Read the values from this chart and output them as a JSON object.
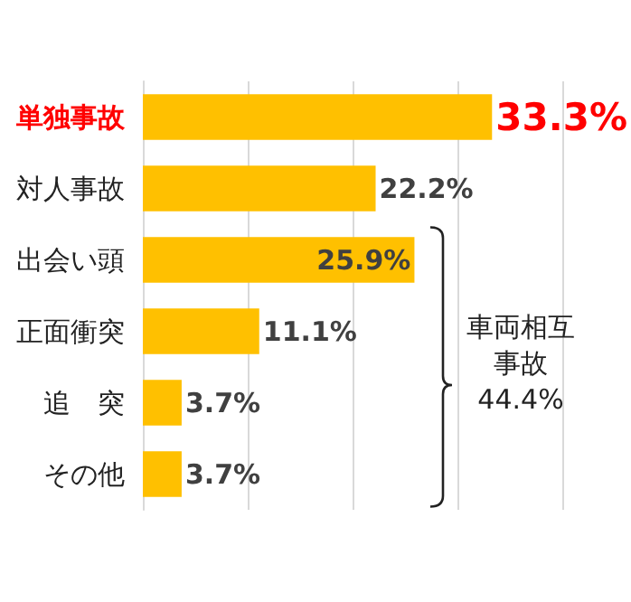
{
  "chart_data": {
    "type": "bar",
    "orientation": "horizontal",
    "categories": [
      "単独事故",
      "対人事故",
      "出会い頭",
      "正面衝突",
      "追　突",
      "その他"
    ],
    "values": [
      33.3,
      22.2,
      25.9,
      11.1,
      3.7,
      3.7
    ],
    "value_labels": [
      "33.3%",
      "22.2%",
      "25.9%",
      "11.1%",
      "3.7%",
      "3.7%"
    ],
    "color": "#ffc000",
    "xlim": [
      0,
      40
    ],
    "xticks": [
      {
        "value": 0,
        "label": null
      },
      {
        "value": 10,
        "label": null
      },
      {
        "value": 20,
        "label": null
      },
      {
        "value": 30,
        "label": null
      },
      {
        "value": 40,
        "label": null
      }
    ],
    "grid": "x",
    "tick_labels": "y",
    "annotations": [
      "車両相互事故",
      "44.4%"
    ]
  }
}
